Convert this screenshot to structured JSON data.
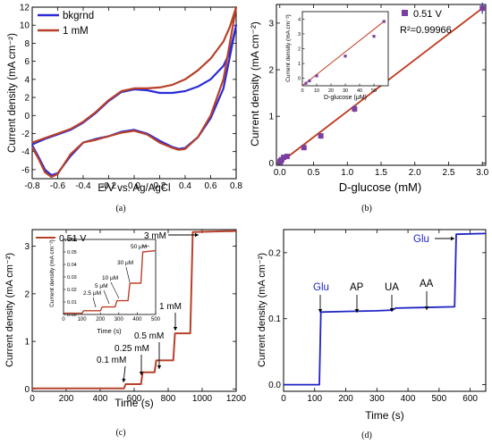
{
  "chart_data": [
    {
      "type": "line",
      "panel_label": "(a)",
      "xlabel": "E/V vs. Ag/AgCl",
      "ylabel": "Current density (mA cm⁻²)",
      "xlim": [
        -0.8,
        0.8
      ],
      "ylim": [
        -7,
        12
      ],
      "xticks": [
        "-0.8",
        "-0.6",
        "-0.4",
        "-0.2",
        "0.0",
        "0.2",
        "0.4",
        "0.6",
        "0.8"
      ],
      "xtick_values": [
        -0.8,
        -0.6,
        -0.4,
        -0.2,
        0.0,
        0.2,
        0.4,
        0.6,
        0.8
      ],
      "yticks": [
        "-6",
        "-4",
        "-2",
        "0",
        "2",
        "4",
        "6",
        "8",
        "10",
        "12"
      ],
      "ytick_values": [
        -6,
        -4,
        -2,
        0,
        2,
        4,
        6,
        8,
        10,
        12
      ],
      "legend_position": "top-left",
      "series": [
        {
          "name": "bkgrnd",
          "color": "#2b2bd6",
          "x": [
            -0.8,
            -0.7,
            -0.6,
            -0.5,
            -0.4,
            -0.3,
            -0.2,
            -0.1,
            0.0,
            0.1,
            0.2,
            0.3,
            0.4,
            0.5,
            0.6,
            0.7,
            0.75,
            0.8,
            0.8,
            0.75,
            0.7,
            0.6,
            0.5,
            0.4,
            0.35,
            0.3,
            0.2,
            0.1,
            0.0,
            -0.1,
            -0.2,
            -0.3,
            -0.4,
            -0.5,
            -0.6,
            -0.65,
            -0.7,
            -0.75,
            -0.8
          ],
          "y": [
            -3.2,
            -2.6,
            -2.1,
            -1.6,
            -0.8,
            0.3,
            1.6,
            2.6,
            2.9,
            2.8,
            2.5,
            2.5,
            2.7,
            3.2,
            4.0,
            5.5,
            7.0,
            10.0,
            10.0,
            6.5,
            3.0,
            -0.3,
            -2.4,
            -3.6,
            -3.7,
            -3.5,
            -2.8,
            -2.0,
            -1.6,
            -1.8,
            -2.3,
            -2.6,
            -3.0,
            -4.5,
            -6.4,
            -6.6,
            -6.0,
            -4.6,
            -3.3
          ]
        },
        {
          "name": "1 mM",
          "color": "#b8402a",
          "x": [
            -0.8,
            -0.7,
            -0.6,
            -0.5,
            -0.4,
            -0.3,
            -0.2,
            -0.1,
            0.0,
            0.1,
            0.2,
            0.3,
            0.4,
            0.5,
            0.6,
            0.7,
            0.75,
            0.8,
            0.8,
            0.75,
            0.7,
            0.6,
            0.5,
            0.4,
            0.35,
            0.3,
            0.2,
            0.1,
            0.0,
            -0.1,
            -0.2,
            -0.3,
            -0.4,
            -0.5,
            -0.6,
            -0.65,
            -0.7,
            -0.75,
            -0.8
          ],
          "y": [
            -3.0,
            -2.5,
            -2.0,
            -1.5,
            -0.7,
            0.4,
            1.7,
            2.7,
            3.0,
            3.0,
            3.1,
            3.4,
            4.0,
            5.0,
            6.3,
            8.2,
            9.8,
            12.0,
            12.0,
            8.0,
            4.0,
            0.0,
            -2.4,
            -3.7,
            -3.8,
            -3.6,
            -3.0,
            -2.1,
            -1.7,
            -1.9,
            -2.3,
            -2.7,
            -3.0,
            -4.3,
            -6.5,
            -6.8,
            -6.3,
            -4.8,
            -3.5
          ]
        }
      ]
    },
    {
      "type": "scatter",
      "panel_label": "(b)",
      "xlabel": "D-glucose (mM)",
      "ylabel": "Current density (mA cm⁻²)",
      "xlim": [
        -0.05,
        3.05
      ],
      "ylim": [
        -0.05,
        3.4
      ],
      "xticks": [
        "0.0",
        "0.5",
        "1.0",
        "1.5",
        "2.0",
        "2.5",
        "3.0"
      ],
      "xtick_values": [
        0,
        0.5,
        1.0,
        1.5,
        2.0,
        2.5,
        3.0
      ],
      "yticks": [
        "0",
        "1",
        "2",
        "3"
      ],
      "ytick_values": [
        0,
        1,
        2,
        3
      ],
      "legend_position": "top-right",
      "legend_label": "0.51 V",
      "annotation": "R²=0.99966",
      "series": [
        {
          "name": "0.51 V",
          "color": "#7b3fa0",
          "x": [
            0.0025,
            0.0075,
            0.0175,
            0.0275,
            0.0575,
            0.1075,
            0.3575,
            0.6075,
            1.1075,
            3.0
          ],
          "y": [
            0.02,
            0.03,
            0.05,
            0.07,
            0.12,
            0.14,
            0.33,
            0.58,
            1.16,
            3.32
          ],
          "error": [
            0.02,
            0.02,
            0.02,
            0.03,
            0.03,
            0.04,
            0.04,
            0.06,
            0.07,
            0.12
          ]
        }
      ],
      "fit_line": {
        "color": "#c03a1e",
        "x": [
          0,
          3.0
        ],
        "y": [
          0.0,
          3.32
        ]
      },
      "inset": {
        "xlabel": "D-glucose (μM)",
        "ylabel": "Current density (mA cm⁻²)",
        "xlim": [
          0,
          60
        ],
        "ylim": [
          0,
          0.06
        ],
        "xticks": [
          "0",
          "10",
          "20",
          "30",
          "40",
          "50"
        ],
        "xtick_values": [
          0,
          10,
          20,
          30,
          40,
          50
        ],
        "yticks": [
          "0",
          "1",
          "2",
          "3",
          "4"
        ],
        "x": [
          2.5,
          5,
          10,
          30,
          50,
          57
        ],
        "y": [
          0.002,
          0.004,
          0.008,
          0.024,
          0.04,
          0.052
        ]
      }
    },
    {
      "type": "line",
      "panel_label": "(c)",
      "xlabel": "Time (s)",
      "ylabel": "Current density (mA cm⁻²)",
      "xlim": [
        0,
        1200
      ],
      "ylim": [
        -0.05,
        3.35
      ],
      "xticks": [
        "0",
        "200",
        "400",
        "600",
        "800",
        "1000",
        "1200"
      ],
      "xtick_values": [
        0,
        200,
        400,
        600,
        800,
        1000,
        1200
      ],
      "yticks": [
        "0",
        "1",
        "2",
        "3"
      ],
      "ytick_values": [
        0,
        1,
        2,
        3
      ],
      "legend_position": "top-left",
      "series": [
        {
          "name": "0.51 V",
          "color": "#b8402a",
          "x": [
            0,
            540,
            550,
            640,
            650,
            720,
            730,
            830,
            840,
            930,
            945,
            1200
          ],
          "y": [
            0.01,
            0.01,
            0.1,
            0.1,
            0.35,
            0.35,
            0.6,
            0.6,
            1.17,
            1.17,
            3.3,
            3.32
          ]
        }
      ],
      "annotations": [
        "0.1 mM",
        "0.25 mM",
        "0.5 mM",
        "1 mM",
        "3 mM"
      ],
      "inset": {
        "xlabel": "Time (s)",
        "ylabel": "Current density (mA cm⁻²)",
        "xlim": [
          0,
          500
        ],
        "ylim": [
          0,
          0.06
        ],
        "xticks": [
          "0",
          "100",
          "200",
          "300",
          "400",
          "500"
        ],
        "xtick_values": [
          0,
          100,
          200,
          300,
          400,
          500
        ],
        "yticks": [
          "0.00",
          "0.01",
          "0.02",
          "0.03",
          "0.04",
          "0.05",
          "0.06"
        ],
        "ytick_values": [
          0,
          0.01,
          0.02,
          0.03,
          0.04,
          0.05,
          0.06
        ],
        "x": [
          0,
          100,
          110,
          200,
          210,
          280,
          290,
          350,
          360,
          420,
          430,
          500
        ],
        "y": [
          0.001,
          0.001,
          0.003,
          0.003,
          0.006,
          0.006,
          0.011,
          0.011,
          0.025,
          0.025,
          0.05,
          0.051
        ],
        "annotations": [
          "2.5 μM",
          "5 μM",
          "10 μM",
          "30 μM",
          "50 μM"
        ]
      }
    },
    {
      "type": "line",
      "panel_label": "(d)",
      "xlabel": "Time (s)",
      "ylabel": "Current density (mA cm⁻²)",
      "xlim": [
        0,
        650
      ],
      "ylim": [
        -0.01,
        0.235
      ],
      "xticks": [
        "0",
        "100",
        "200",
        "300",
        "400",
        "500",
        "600"
      ],
      "xtick_values": [
        0,
        100,
        200,
        300,
        400,
        500,
        600
      ],
      "yticks": [
        "0.0",
        "0.1",
        "0.2"
      ],
      "ytick_values": [
        0.0,
        0.1,
        0.2
      ],
      "series": [
        {
          "name": "",
          "color": "#1f24c4",
          "x": [
            0,
            115,
            120,
            200,
            300,
            350,
            360,
            450,
            550,
            555,
            650
          ],
          "y": [
            0.0,
            0.0,
            0.11,
            0.111,
            0.112,
            0.113,
            0.116,
            0.117,
            0.118,
            0.228,
            0.229
          ]
        }
      ],
      "annotations": [
        "Glu",
        "AP",
        "UA",
        "AA",
        "Glu"
      ]
    }
  ]
}
